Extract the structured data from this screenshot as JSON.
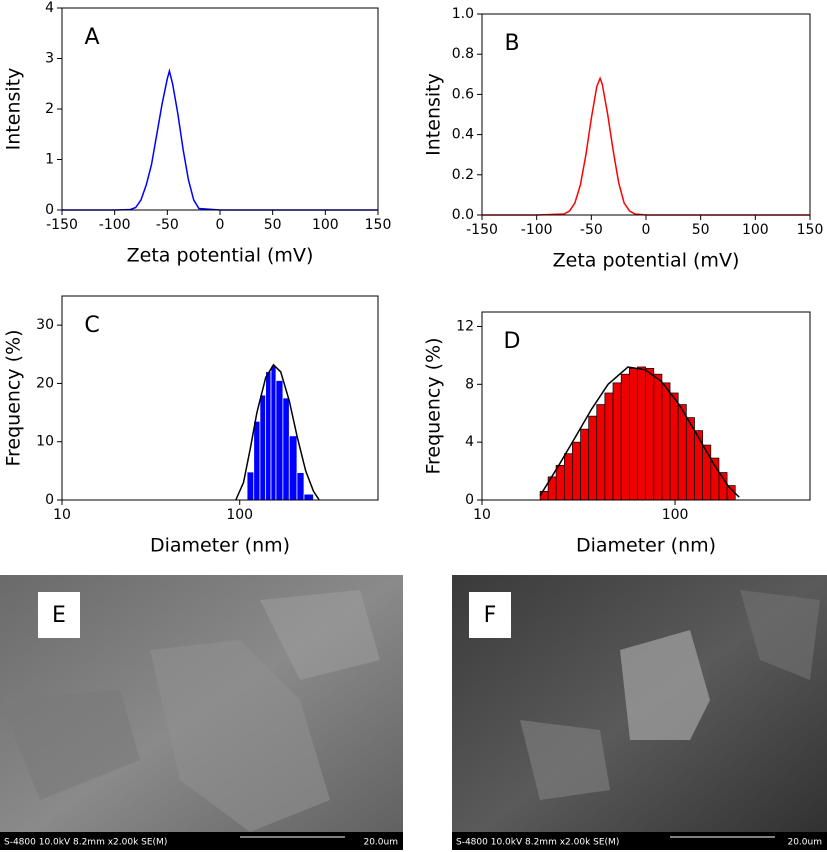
{
  "chart_data": [
    {
      "type": "line",
      "annotation": "A",
      "ylabel": "Intensity",
      "xlabel": "Zeta potential (mV)",
      "color": "#0000ff",
      "x": [
        -150,
        -100,
        -85,
        -80,
        -75,
        -70,
        -65,
        -60,
        -55,
        -50,
        -48,
        -45,
        -40,
        -35,
        -30,
        -25,
        -20,
        0,
        50,
        100,
        150
      ],
      "values": [
        0,
        0,
        0.01,
        0.05,
        0.2,
        0.5,
        0.9,
        1.5,
        2.1,
        2.6,
        2.75,
        2.5,
        1.9,
        1.2,
        0.6,
        0.2,
        0.03,
        0,
        0,
        0,
        0
      ],
      "xlim": [
        -150,
        150
      ],
      "xticks": [
        -150,
        -100,
        -50,
        0,
        50,
        100,
        150
      ],
      "ylim": [
        0,
        4
      ],
      "yticks": [
        0,
        1,
        2,
        3,
        4
      ]
    },
    {
      "type": "line",
      "annotation": "B",
      "ylabel": "Intensity",
      "xlabel": "Zeta potential (mV)",
      "color": "#ff0000",
      "x": [
        -150,
        -100,
        -75,
        -70,
        -65,
        -60,
        -55,
        -50,
        -45,
        -42,
        -40,
        -35,
        -30,
        -25,
        -20,
        -15,
        -10,
        0,
        50,
        100,
        150
      ],
      "values": [
        0,
        0,
        0.005,
        0.02,
        0.06,
        0.15,
        0.3,
        0.48,
        0.64,
        0.68,
        0.65,
        0.5,
        0.32,
        0.16,
        0.06,
        0.02,
        0.005,
        0,
        0,
        0,
        0
      ],
      "xlim": [
        -150,
        150
      ],
      "xticks": [
        -150,
        -100,
        -50,
        0,
        50,
        100,
        150
      ],
      "ylim": [
        0,
        1
      ],
      "yticks": [
        {
          "value": 0,
          "label": "0.0"
        },
        0.2,
        0.4,
        0.6,
        0.8,
        {
          "value": 1,
          "label": "1.0"
        }
      ]
    },
    {
      "type": "histogram",
      "annotation": "C",
      "ylabel": "Frequency (%)",
      "xlabel": "Diameter (nm)",
      "color": "#0000ff",
      "edgecolor": "#ffffff",
      "log_x": true,
      "bins": [
        110,
        120,
        130,
        140,
        150,
        160,
        175,
        190,
        210,
        230,
        260
      ],
      "values": [
        4.8,
        13.5,
        18,
        22,
        23,
        20.5,
        17.5,
        11,
        4.7,
        1
      ],
      "fit": {
        "color": "#000000",
        "x": [
          95,
          105,
          115,
          125,
          140,
          155,
          170,
          190,
          210,
          235,
          260,
          280
        ],
        "values": [
          0,
          3,
          9,
          15,
          21,
          23.2,
          22,
          17,
          11,
          5,
          1.5,
          0
        ]
      },
      "xlim": [
        10,
        600
      ],
      "xticks": [
        10,
        100
      ],
      "ylim": [
        0,
        35
      ],
      "yticks": [
        0,
        10,
        20,
        30
      ]
    },
    {
      "type": "histogram",
      "annotation": "D",
      "ylabel": "Frequency (%)",
      "xlabel": "Diameter (nm)",
      "color": "#ee0000",
      "edgecolor": "#000000",
      "log_x": true,
      "bins": [
        20,
        22,
        24.2,
        26.7,
        29.4,
        32.4,
        35.7,
        39.3,
        43.3,
        47.7,
        52.6,
        58,
        63.9,
        70.4,
        77.6,
        85.5,
        94.2,
        103.8,
        114.4,
        126.1,
        139,
        153.2,
        168.8,
        186,
        205
      ],
      "values": [
        0.6,
        1.6,
        2.4,
        3.2,
        4.0,
        4.9,
        5.8,
        6.6,
        7.4,
        8.1,
        8.7,
        9.1,
        9.2,
        9.1,
        8.7,
        8.1,
        7.4,
        6.6,
        5.7,
        4.8,
        3.8,
        2.9,
        1.9,
        1.0
      ],
      "fit": {
        "color": "#000000",
        "x": [
          20,
          25,
          30,
          37,
          45,
          57,
          70,
          85,
          105,
          130,
          160,
          190,
          215
        ],
        "values": [
          0.3,
          2.4,
          4.2,
          6.3,
          8.0,
          9.2,
          9,
          8.2,
          6.6,
          4.5,
          2.4,
          0.9,
          0.2
        ]
      },
      "xlim": [
        10,
        500
      ],
      "xticks": [
        10,
        100
      ],
      "ylim": [
        0,
        13
      ],
      "yticks": [
        0,
        4,
        8,
        12
      ]
    }
  ],
  "images": [
    {
      "label": "E",
      "caption": "S-4800 10.0kV 8.2mm x2.00k SE(M)",
      "scale": "20.0um"
    },
    {
      "label": "F",
      "caption": "S-4800 10.0kV 8.2mm x2.00k SE(M)",
      "scale": "20.0um"
    }
  ]
}
